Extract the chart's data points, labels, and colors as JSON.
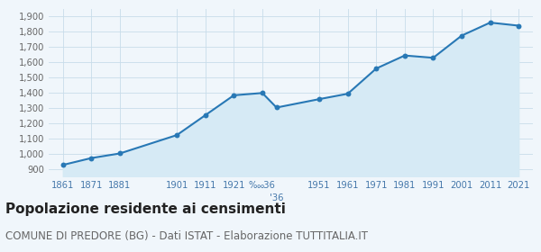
{
  "years": [
    1861,
    1871,
    1881,
    1901,
    1911,
    1921,
    1931,
    1936,
    1951,
    1961,
    1971,
    1981,
    1991,
    2001,
    2011,
    2021
  ],
  "x_labels_map": {
    "1861": "1861",
    "1871": "1871",
    "1881": "1881",
    "1891": "",
    "1901": "1901",
    "1911": "1911",
    "1921": "1921",
    "1931": "‱36",
    "1936": "",
    "1941": "",
    "1951": "1951",
    "1961": "1961",
    "1971": "1971",
    "1981": "1981",
    "1991": "1991",
    "2001": "2001",
    "2011": "2011",
    "2021": "2021"
  },
  "population": [
    930,
    975,
    1005,
    1125,
    1255,
    1385,
    1400,
    1305,
    1360,
    1395,
    1560,
    1645,
    1630,
    1775,
    1860,
    1840
  ],
  "line_color": "#2878b5",
  "fill_color": "#d6eaf5",
  "marker_color": "#2878b5",
  "background_color": "#f0f6fb",
  "grid_color": "#c8dcea",
  "ylim": [
    855,
    1950
  ],
  "yticks": [
    900,
    1000,
    1100,
    1200,
    1300,
    1400,
    1500,
    1600,
    1700,
    1800,
    1900
  ],
  "xtick_years": [
    1861,
    1871,
    1881,
    1901,
    1911,
    1921,
    1931,
    1951,
    1961,
    1971,
    1981,
    1991,
    2001,
    2011,
    2021
  ],
  "xtick_labels": [
    "1861",
    "1871",
    "1881",
    "1901",
    "1911",
    "1921",
    "‱36",
    "1951",
    "1961",
    "1971",
    "1981",
    "1991",
    "2001",
    "2011",
    "2021"
  ],
  "extra_tick_year": 1936,
  "extra_tick_label": "",
  "title": "Popolazione residente ai censimenti",
  "subtitle": "COMUNE DI PREDORE (BG) - Dati ISTAT - Elaborazione TUTTITALIA.IT",
  "title_fontsize": 11,
  "subtitle_fontsize": 8.5
}
